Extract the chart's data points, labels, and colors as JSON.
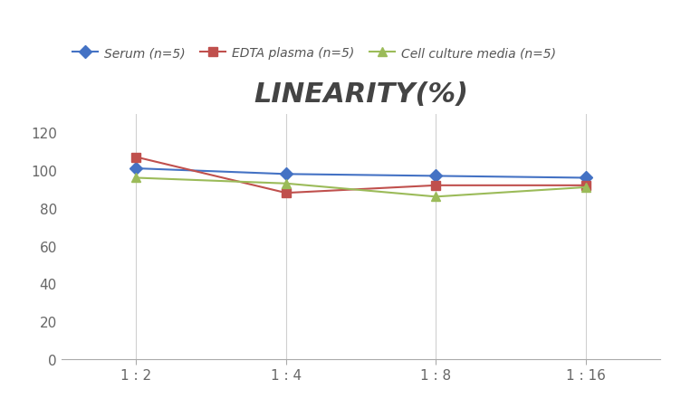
{
  "title": "LINEARITY(%)",
  "x_labels": [
    "1 : 2",
    "1 : 4",
    "1 : 8",
    "1 : 16"
  ],
  "x_positions": [
    0,
    1,
    2,
    3
  ],
  "series": [
    {
      "label": "Serum (n=5)",
      "values": [
        101,
        98,
        97,
        96
      ],
      "color": "#4472C4",
      "marker": "D",
      "linewidth": 1.5
    },
    {
      "label": "EDTA plasma (n=5)",
      "values": [
        107,
        88,
        92,
        92
      ],
      "color": "#C0504D",
      "marker": "s",
      "linewidth": 1.5
    },
    {
      "label": "Cell culture media (n=5)",
      "values": [
        96,
        93,
        86,
        91
      ],
      "color": "#9BBB59",
      "marker": "^",
      "linewidth": 1.5
    }
  ],
  "ylim": [
    0,
    130
  ],
  "yticks": [
    0,
    20,
    40,
    60,
    80,
    100,
    120
  ],
  "grid_color": "#D0D0D0",
  "background_color": "#FFFFFF",
  "title_fontsize": 22,
  "legend_fontsize": 10,
  "tick_fontsize": 11
}
